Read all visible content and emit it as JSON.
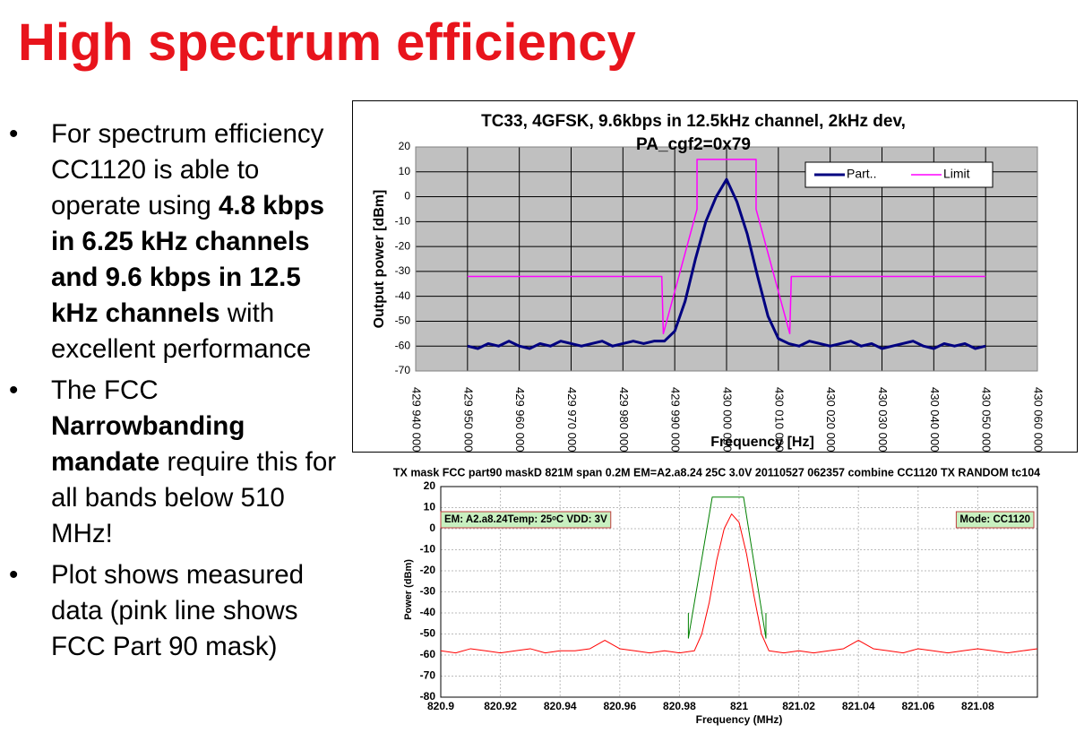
{
  "title": "High spectrum efficiency",
  "bullets": [
    {
      "segments": [
        {
          "text": "For spectrum efficiency CC1120 is able to operate using ",
          "bold": false
        },
        {
          "text": "4.8 kbps in 6.25 kHz channels and 9.6 kbps in 12.5 kHz channels",
          "bold": true
        },
        {
          "text": " with excellent performance",
          "bold": false
        }
      ]
    },
    {
      "segments": [
        {
          "text": "The FCC ",
          "bold": false
        },
        {
          "text": "Narrowbanding mandate",
          "bold": true
        },
        {
          "text": " require this for all bands below 510 MHz!",
          "bold": false
        }
      ]
    },
    {
      "segments": [
        {
          "text": "Plot shows measured data (pink line shows FCC Part 90 mask)",
          "bold": false
        }
      ]
    }
  ],
  "chart_data": [
    {
      "type": "line",
      "title": "TC33, 4GFSK, 9.6kbps in 12.5kHz channel, 2kHz dev, PA_cgf2=0x79",
      "x_label": "Frequency [Hz]",
      "y_label": "Output power [dBm]",
      "xlim": [
        429940000,
        430060000
      ],
      "xticks": [
        {
          "value": 429940000,
          "label": "429 940 000"
        },
        {
          "value": 429950000,
          "label": "429 950 000"
        },
        {
          "value": 429960000,
          "label": "429 960 000"
        },
        {
          "value": 429970000,
          "label": "429 970 000"
        },
        {
          "value": 429980000,
          "label": "429 980 000"
        },
        {
          "value": 429990000,
          "label": "429 990 000"
        },
        {
          "value": 430000000,
          "label": "430 000 000"
        },
        {
          "value": 430010000,
          "label": "430 010 000"
        },
        {
          "value": 430020000,
          "label": "430 020 000"
        },
        {
          "value": 430030000,
          "label": "430 030 000"
        },
        {
          "value": 430040000,
          "label": "430 040 000"
        },
        {
          "value": 430050000,
          "label": "430 050 000"
        },
        {
          "value": 430060000,
          "label": "430 060 000"
        }
      ],
      "ylim": [
        -70,
        20
      ],
      "yticks": [
        -70,
        -60,
        -50,
        -40,
        -30,
        -20,
        -10,
        0,
        10,
        20
      ],
      "grid": true,
      "grid_color": "#000000",
      "plot_background": "#c0c0c0",
      "legend": "upper right",
      "series": [
        {
          "name": "Part..",
          "color": "#000080",
          "x": [
            429950000,
            429952000,
            429954000,
            429956000,
            429958000,
            429960000,
            429962000,
            429964000,
            429966000,
            429968000,
            429970000,
            429972000,
            429974000,
            429976000,
            429978000,
            429980000,
            429982000,
            429984000,
            429986000,
            429988000,
            429990000,
            429992000,
            429994000,
            429996000,
            429998000,
            430000000,
            430002000,
            430004000,
            430006000,
            430008000,
            430010000,
            430012000,
            430014000,
            430016000,
            430018000,
            430020000,
            430022000,
            430024000,
            430026000,
            430028000,
            430030000,
            430032000,
            430034000,
            430036000,
            430038000,
            430040000,
            430042000,
            430044000,
            430046000,
            430048000,
            430050000
          ],
          "values": [
            -60,
            -61,
            -59,
            -60,
            -58,
            -60,
            -61,
            -59,
            -60,
            -58,
            -59,
            -60,
            -59,
            -58,
            -60,
            -59,
            -58,
            -59,
            -58,
            -58,
            -54,
            -42,
            -25,
            -10,
            0,
            7,
            -2,
            -15,
            -32,
            -48,
            -57,
            -59,
            -60,
            -58,
            -59,
            -60,
            -59,
            -58,
            -60,
            -59,
            -61,
            -60,
            -59,
            -58,
            -60,
            -61,
            -59,
            -60,
            -59,
            -61,
            -60
          ]
        },
        {
          "name": "Limit",
          "color": "#ff00ff",
          "x": [
            429950000,
            429987500,
            429987800,
            429994300,
            429994300,
            430005700,
            430005700,
            430012200,
            430012500,
            430050000
          ],
          "values": [
            -32,
            -32,
            -55,
            -5,
            15,
            15,
            -5,
            -55,
            -32,
            -32
          ]
        }
      ]
    },
    {
      "type": "line",
      "title": "TX mask FCC part90 maskD 821M span 0.2M EM=A2.a8.24 25C 3.0V 20110527 062357 combine CC1120 TX RANDOM tc104",
      "x_label": "Frequency (MHz)",
      "y_label": "Power (dBm)",
      "xlim": [
        820.9,
        821.1
      ],
      "xticks": [
        820.9,
        820.92,
        820.94,
        820.96,
        820.98,
        821,
        821.02,
        821.04,
        821.06,
        821.08
      ],
      "ylim": [
        -80,
        20
      ],
      "yticks": [
        -80,
        -70,
        -60,
        -50,
        -40,
        -30,
        -20,
        -10,
        0,
        10,
        20
      ],
      "grid": true,
      "grid_color": "#bbbbbb",
      "plot_background": "#ffffff",
      "annotations": [
        "EM: A2.a8.24Temp: 25ᵒC  VDD: 3V",
        "Mode: CC1120"
      ],
      "series": [
        {
          "color": "#ff0000",
          "x": [
            820.9,
            820.905,
            820.91,
            820.915,
            820.92,
            820.925,
            820.93,
            820.935,
            820.94,
            820.945,
            820.95,
            820.955,
            820.96,
            820.965,
            820.97,
            820.975,
            820.98,
            820.985,
            820.9875,
            820.99,
            820.9925,
            820.995,
            820.9975,
            821,
            821.0025,
            821.005,
            821.0075,
            821.01,
            821.015,
            821.02,
            821.025,
            821.03,
            821.035,
            821.04,
            821.045,
            821.05,
            821.055,
            821.06,
            821.065,
            821.07,
            821.075,
            821.08,
            821.085,
            821.09,
            821.095,
            821.1
          ],
          "values": [
            -58,
            -59,
            -57,
            -58,
            -59,
            -58,
            -57,
            -59,
            -58,
            -58,
            -57,
            -53,
            -57,
            -58,
            -59,
            -58,
            -59,
            -58,
            -50,
            -35,
            -15,
            0,
            7,
            3,
            -12,
            -32,
            -50,
            -58,
            -59,
            -58,
            -59,
            -58,
            -57,
            -53,
            -57,
            -58,
            -59,
            -57,
            -58,
            -59,
            -58,
            -57,
            -58,
            -59,
            -58,
            -57
          ]
        },
        {
          "color": "#008000",
          "x": [
            820.983,
            820.983,
            820.991,
            821.0015,
            821.009,
            821.009
          ],
          "values": [
            -40,
            -52,
            15,
            15,
            -52,
            -40
          ]
        }
      ]
    }
  ]
}
